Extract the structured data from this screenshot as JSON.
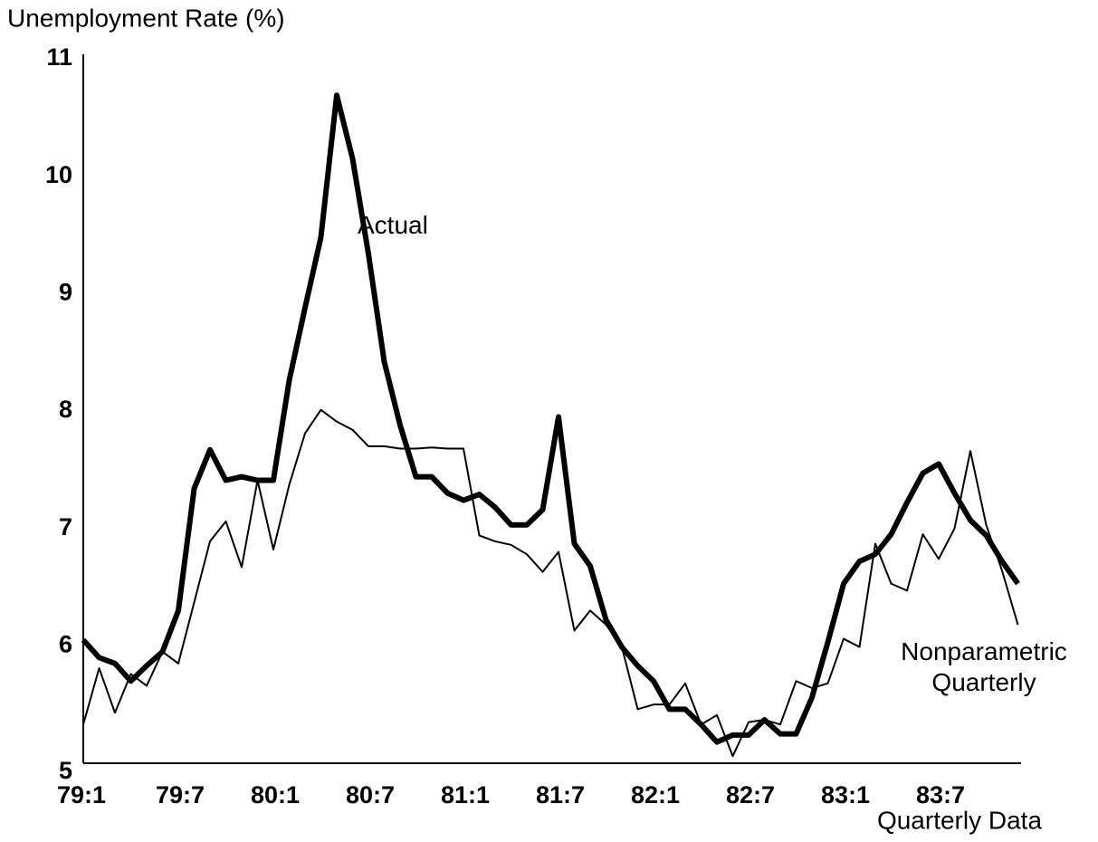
{
  "chart_data": {
    "type": "line",
    "title": "Unemployment Rate (%)",
    "x_label": "Quarterly Data",
    "categories": [
      "79:1",
      null,
      null,
      null,
      null,
      null,
      "79:7",
      null,
      null,
      null,
      null,
      null,
      "80:1",
      null,
      null,
      null,
      null,
      null,
      "80:7",
      null,
      null,
      null,
      null,
      null,
      "81:1",
      null,
      null,
      null,
      null,
      null,
      "81:7",
      null,
      null,
      null,
      null,
      null,
      "82:1",
      null,
      null,
      null,
      null,
      null,
      "82:7",
      null,
      null,
      null,
      null,
      null,
      "83:1",
      null,
      null,
      null,
      null,
      null,
      "83:7",
      null,
      null,
      null,
      null,
      null
    ],
    "series": [
      {
        "name": "Actual",
        "color": "#000000",
        "width": 6,
        "values": [
          6.05,
          5.9,
          5.85,
          5.7,
          5.83,
          5.95,
          6.3,
          7.34,
          7.67,
          7.41,
          7.44,
          7.41,
          7.41,
          8.26,
          8.88,
          9.48,
          10.69,
          10.15,
          9.34,
          8.42,
          7.88,
          7.44,
          7.44,
          7.3,
          7.24,
          7.29,
          7.18,
          7.03,
          7.03,
          7.16,
          7.95,
          6.87,
          6.68,
          6.22,
          5.99,
          5.83,
          5.7,
          5.46,
          5.46,
          5.33,
          5.18,
          5.24,
          5.24,
          5.37,
          5.25,
          5.25,
          5.56,
          6.03,
          6.53,
          6.72,
          6.78,
          6.95,
          7.22,
          7.47,
          7.55,
          7.3,
          7.07,
          6.94,
          6.72,
          6.53
        ]
      },
      {
        "name": "Nonparametric Quarterly",
        "color": "#000000",
        "width": 2,
        "values": [
          5.33,
          5.81,
          5.43,
          5.76,
          5.66,
          5.95,
          5.85,
          6.37,
          6.89,
          7.06,
          6.67,
          7.41,
          6.82,
          7.37,
          7.81,
          8.01,
          7.91,
          7.84,
          7.7,
          7.7,
          7.68,
          7.68,
          7.69,
          7.68,
          7.68,
          6.94,
          6.89,
          6.86,
          6.78,
          6.63,
          6.8,
          6.13,
          6.3,
          6.18,
          5.99,
          5.46,
          5.5,
          5.5,
          5.68,
          5.33,
          5.41,
          5.06,
          5.35,
          5.37,
          5.33,
          5.7,
          5.64,
          5.68,
          6.06,
          5.99,
          6.87,
          6.53,
          6.47,
          6.95,
          6.74,
          7.0,
          7.66,
          7.03,
          6.64,
          6.18
        ]
      }
    ],
    "ylim": [
      5,
      11
    ],
    "yticks": [
      5,
      6,
      7,
      8,
      9,
      10,
      11
    ],
    "grid": false
  }
}
